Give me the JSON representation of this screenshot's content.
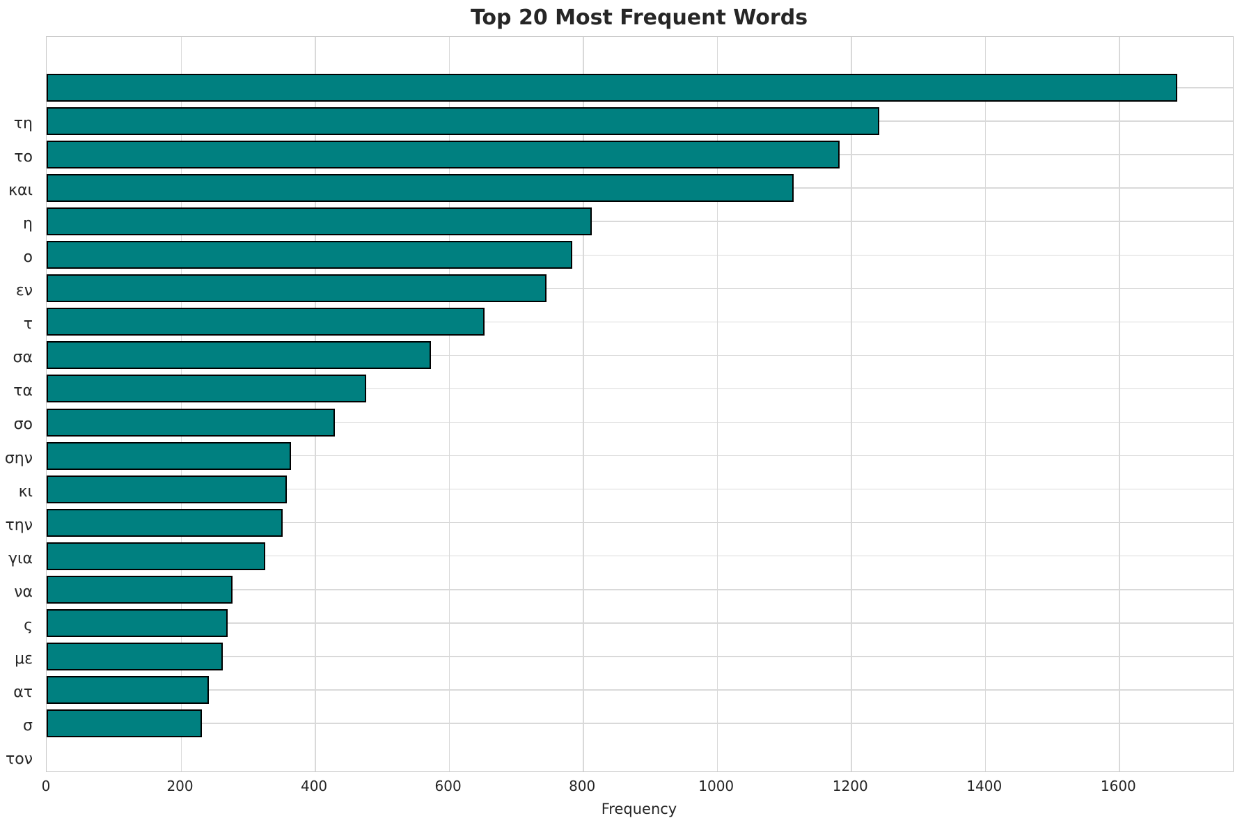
{
  "title": "Top 20 Most Frequent Words",
  "colors": {
    "bar_fill": "#008080",
    "bar_edge": "#000000",
    "grid": "#d9d9d9",
    "spine": "#c9c9c9",
    "text": "#262626",
    "background": "#ffffff"
  },
  "chart_data": {
    "type": "bar",
    "orientation": "horizontal",
    "title": "Top 20 Most Frequent Words",
    "xlabel": "Frequency",
    "ylabel": "",
    "categories": [
      "τη",
      "το",
      "και",
      "η",
      "ο",
      "εν",
      "τ",
      "σα",
      "τα",
      "σο",
      "σην",
      "κι",
      "την",
      "για",
      "να",
      "ς",
      "με",
      "ατ",
      "σ",
      "τον"
    ],
    "values": [
      1687,
      1242,
      1183,
      1115,
      813,
      784,
      746,
      653,
      573,
      477,
      430,
      365,
      358,
      352,
      326,
      277,
      270,
      263,
      242,
      232
    ],
    "xlim": [
      0,
      1770
    ],
    "xticks": [
      0,
      200,
      400,
      600,
      800,
      1000,
      1200,
      1400,
      1600
    ],
    "grid": true,
    "grid_axes": "both",
    "legend": false
  }
}
